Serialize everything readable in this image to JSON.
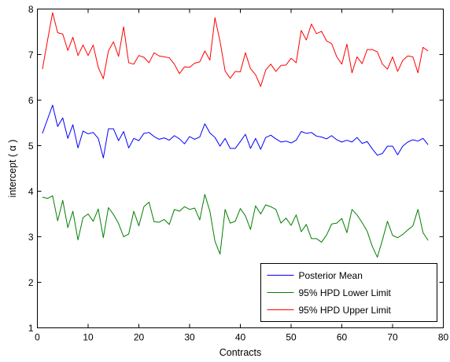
{
  "chart_data": {
    "type": "line",
    "title": "",
    "xlabel": "Contracts",
    "ylabel": "intercept ( α )",
    "xlim": [
      0,
      80
    ],
    "ylim": [
      1,
      8
    ],
    "xticks": [
      0,
      10,
      20,
      30,
      40,
      50,
      60,
      70,
      80
    ],
    "yticks": [
      1,
      2,
      3,
      4,
      5,
      6,
      7,
      8
    ],
    "grid": false,
    "legend_position": "bottom-right",
    "x": [
      1,
      2,
      3,
      4,
      5,
      6,
      7,
      8,
      9,
      10,
      11,
      12,
      13,
      14,
      15,
      16,
      17,
      18,
      19,
      20,
      21,
      22,
      23,
      24,
      25,
      26,
      27,
      28,
      29,
      30,
      31,
      32,
      33,
      34,
      35,
      36,
      37,
      38,
      39,
      40,
      41,
      42,
      43,
      44,
      45,
      46,
      47,
      48,
      49,
      50,
      51,
      52,
      53,
      54,
      55,
      56,
      57,
      58,
      59,
      60,
      61,
      62,
      63,
      64,
      65,
      66,
      67,
      68,
      69,
      70,
      71,
      72,
      73,
      74,
      75,
      76,
      77
    ],
    "series": [
      {
        "name": "Posterior Mean",
        "color": "#0000ff",
        "values": [
          5.27,
          5.58,
          5.89,
          5.42,
          5.61,
          5.16,
          5.46,
          4.95,
          5.32,
          5.26,
          5.29,
          5.16,
          4.73,
          5.37,
          5.37,
          5.11,
          5.31,
          4.95,
          5.16,
          5.11,
          5.27,
          5.29,
          5.2,
          5.14,
          5.17,
          5.12,
          5.22,
          5.15,
          5.04,
          5.2,
          5.14,
          5.19,
          5.48,
          5.28,
          5.18,
          4.99,
          5.16,
          4.94,
          4.94,
          5.09,
          5.25,
          4.94,
          5.16,
          4.92,
          5.18,
          5.23,
          5.15,
          5.08,
          5.1,
          5.06,
          5.12,
          5.31,
          5.27,
          5.29,
          5.21,
          5.19,
          5.15,
          5.22,
          5.13,
          5.08,
          5.12,
          5.08,
          5.18,
          5.05,
          5.09,
          4.93,
          4.79,
          4.83,
          4.99,
          4.99,
          4.8,
          4.99,
          5.08,
          5.13,
          5.1,
          5.16,
          5.02
        ]
      },
      {
        "name": "95% HPD Lower Limit",
        "color": "#008000",
        "values": [
          3.87,
          3.84,
          3.9,
          3.35,
          3.8,
          3.2,
          3.56,
          2.93,
          3.42,
          3.5,
          3.34,
          3.61,
          2.98,
          3.64,
          3.49,
          3.29,
          3.0,
          3.06,
          3.56,
          3.24,
          3.66,
          3.76,
          3.33,
          3.32,
          3.38,
          3.27,
          3.6,
          3.56,
          3.66,
          3.6,
          3.63,
          3.37,
          3.93,
          3.56,
          2.9,
          2.62,
          3.6,
          3.3,
          3.34,
          3.62,
          3.46,
          3.16,
          3.68,
          3.5,
          3.7,
          3.66,
          3.6,
          3.3,
          3.41,
          3.25,
          3.48,
          3.11,
          3.27,
          2.96,
          2.96,
          2.88,
          3.04,
          3.28,
          3.3,
          3.4,
          3.09,
          3.6,
          3.48,
          3.31,
          3.12,
          2.79,
          2.55,
          2.93,
          3.34,
          3.03,
          2.98,
          3.05,
          3.15,
          3.24,
          3.6,
          3.09,
          2.92
        ]
      },
      {
        "name": "95% HPD Upper Limit",
        "color": "#ff0000",
        "values": [
          6.68,
          7.31,
          7.92,
          7.48,
          7.45,
          7.09,
          7.38,
          6.98,
          7.21,
          6.98,
          7.21,
          6.72,
          6.47,
          7.08,
          7.28,
          6.96,
          7.61,
          6.82,
          6.79,
          6.98,
          6.94,
          6.82,
          7.04,
          6.97,
          6.95,
          6.93,
          6.79,
          6.58,
          6.73,
          6.72,
          6.81,
          6.84,
          7.08,
          6.88,
          7.81,
          7.29,
          6.64,
          6.48,
          6.63,
          6.62,
          7.04,
          6.69,
          6.56,
          6.3,
          6.66,
          6.79,
          6.63,
          6.76,
          6.77,
          6.92,
          6.82,
          7.53,
          7.32,
          7.67,
          7.46,
          7.51,
          7.3,
          7.24,
          6.95,
          6.79,
          7.23,
          6.6,
          6.95,
          6.8,
          7.11,
          7.11,
          7.06,
          6.79,
          6.68,
          6.95,
          6.63,
          6.87,
          6.97,
          6.95,
          6.6,
          7.16,
          7.08
        ]
      }
    ]
  }
}
